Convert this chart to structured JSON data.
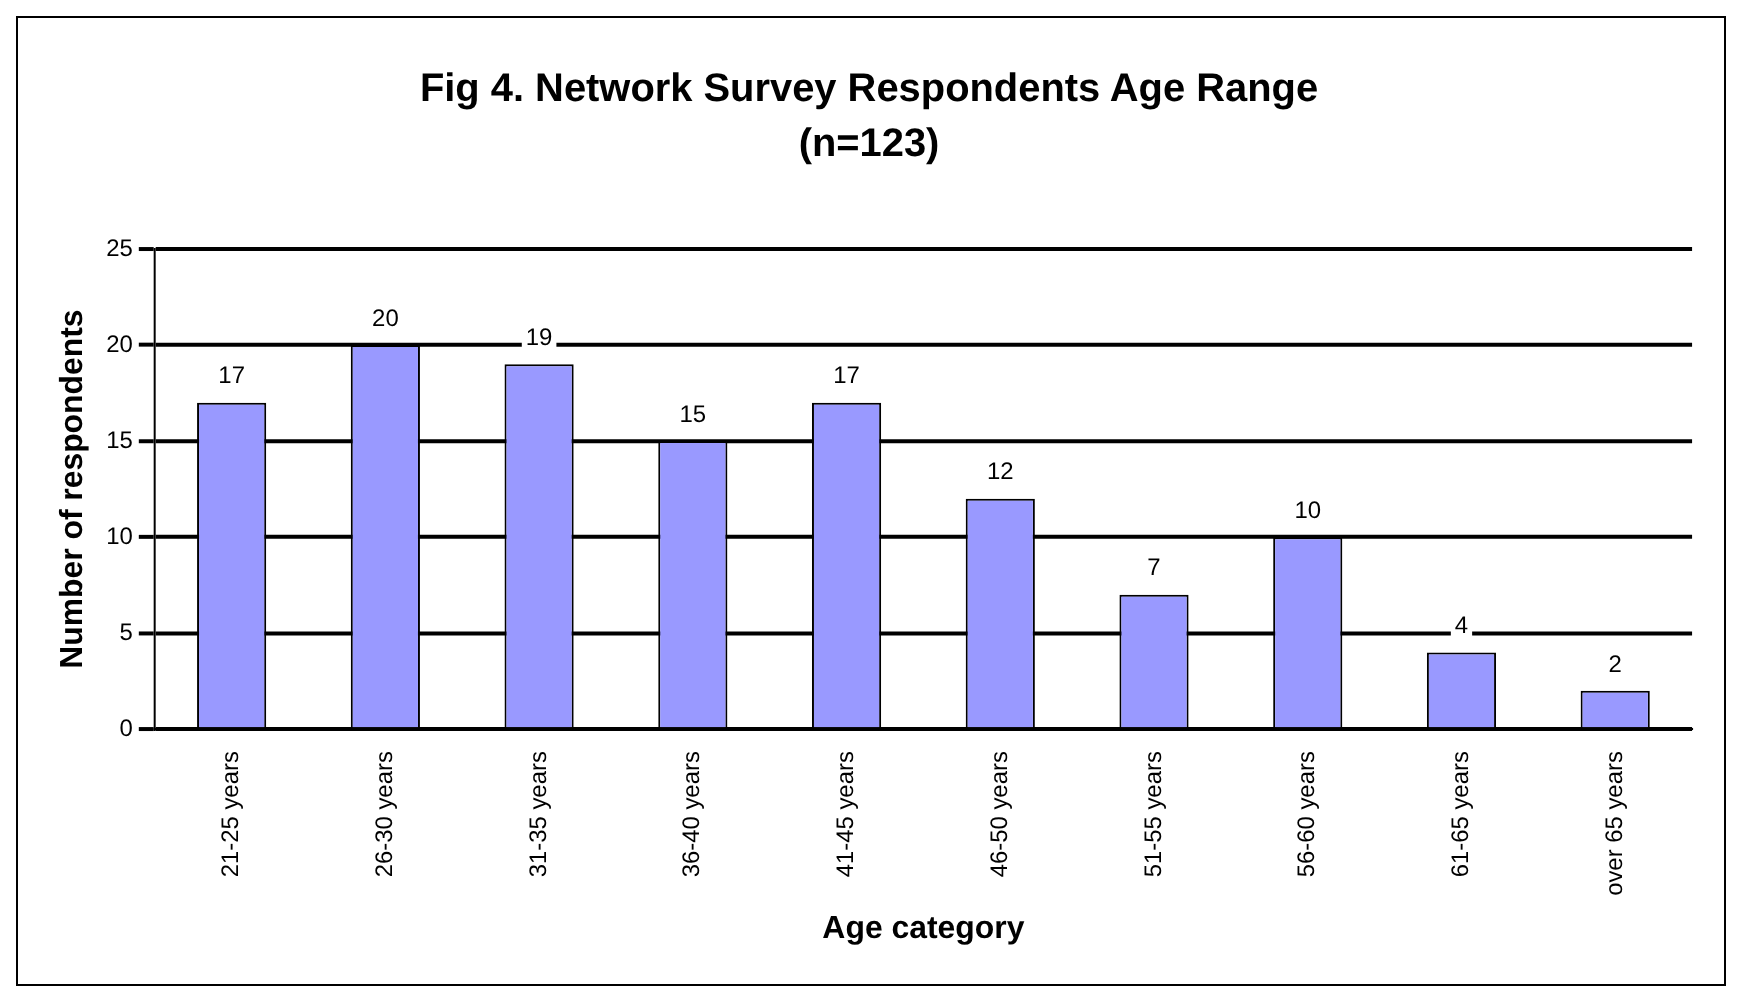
{
  "chart_data": {
    "type": "bar",
    "title": "Fig 4. Network Survey Respondents Age Range",
    "subtitle": "(n=123)",
    "xlabel": "Age category",
    "ylabel": "Number of respondents",
    "categories": [
      "21-25 years",
      "26-30 years",
      "31-35 years",
      "36-40 years",
      "41-45 years",
      "46-50 years",
      "51-55 years",
      "56-60 years",
      "61-65 years",
      "over 65 years"
    ],
    "values": [
      17,
      20,
      19,
      15,
      17,
      12,
      7,
      10,
      4,
      2
    ],
    "color": "#9999ff",
    "ylim": [
      0,
      25
    ],
    "yticks": [
      0,
      5,
      10,
      15,
      20,
      25
    ],
    "grid": "y",
    "legend": false,
    "data_labels": true
  }
}
